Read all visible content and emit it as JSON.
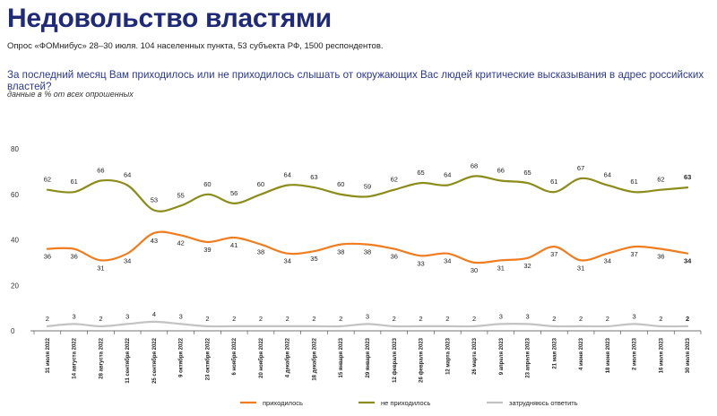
{
  "header": {
    "title": "Недовольство властями",
    "subtitle": "Опрос «ФОМнибус» 28–30 июля. 104 населенных пункта, 53 субъекта РФ, 1500 респондентов.",
    "question": "За последний месяц Вам приходилось или не приходилось слышать от окружающих Вас людей критические высказывания в адрес российских властей?",
    "note": "данные в % от всех опрошенных"
  },
  "chart_data": {
    "type": "line",
    "title": "",
    "xlabel": "",
    "ylabel": "",
    "ylim": [
      0,
      80
    ],
    "yticks": [
      0,
      20,
      40,
      60,
      80
    ],
    "grid": false,
    "legend_position": "bottom",
    "categories": [
      "31 июля 2022",
      "14 августа 2022",
      "28 августа 2022",
      "11 сентября 2022",
      "25 сентября 2022",
      "9 октября 2022",
      "23 октября 2022",
      "6 ноября 2022",
      "20 ноября 2022",
      "4 декабря 2022",
      "18 декабря 2022",
      "15 января 2023",
      "29 января 2023",
      "12 февраля 2023",
      "26 февраля 2023",
      "12 марта 2023",
      "26 марта 2023",
      "9 апреля 2023",
      "23 апреля 2023",
      "21 мая 2023",
      "4 июня 2023",
      "18 июня 2023",
      "2 июля 2023",
      "16 июля 2023",
      "30 июля 2023"
    ],
    "series": [
      {
        "name": "приходилось",
        "color": "#f07c1e",
        "values": [
          36,
          36,
          31,
          34,
          43,
          42,
          39,
          41,
          38,
          34,
          35,
          38,
          38,
          36,
          33,
          34,
          30,
          31,
          32,
          37,
          31,
          34,
          37,
          36,
          34
        ]
      },
      {
        "name": "не приходилось",
        "color": "#8c8c1a",
        "values": [
          62,
          61,
          66,
          64,
          53,
          55,
          60,
          56,
          60,
          64,
          63,
          60,
          59,
          62,
          65,
          64,
          68,
          66,
          65,
          61,
          67,
          64,
          61,
          62,
          63
        ]
      },
      {
        "name": "затрудняюсь ответить",
        "color": "#c3c3c3",
        "values": [
          2,
          3,
          2,
          3,
          4,
          3,
          2,
          2,
          2,
          2,
          2,
          2,
          3,
          2,
          2,
          2,
          2,
          3,
          3,
          2,
          2,
          2,
          3,
          2,
          2
        ]
      }
    ]
  }
}
